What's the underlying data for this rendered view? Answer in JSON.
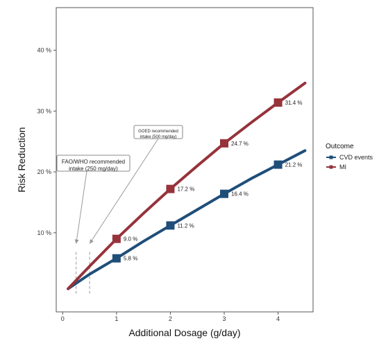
{
  "chart_data": {
    "type": "line",
    "title": "",
    "xlabel": "Additional Dosage (g/day)",
    "ylabel": "Risk Reduction",
    "xlim": [
      -0.12,
      4.65
    ],
    "ylim": [
      -0.03,
      0.47
    ],
    "x_ticks": [
      0,
      1,
      2,
      3,
      4
    ],
    "x_tick_labels": [
      "0",
      "1",
      "2",
      "3",
      "4"
    ],
    "y_ticks": [
      0.1,
      0.2,
      0.3,
      0.4
    ],
    "y_tick_labels": [
      "10 %",
      "20 %",
      "30 %",
      "40 %"
    ],
    "grid": false,
    "legend": {
      "title": "Outcome",
      "placement": "right",
      "entries": [
        "CVD events",
        "MI"
      ]
    },
    "series": [
      {
        "name": "CVD events",
        "color": "#1f4e79",
        "x": [
          0.1,
          0.5,
          1,
          1.5,
          2,
          2.5,
          3,
          3.5,
          4,
          4.5
        ],
        "y": [
          0.008,
          0.032,
          0.058,
          0.086,
          0.112,
          0.138,
          0.164,
          0.189,
          0.212,
          0.235
        ],
        "points": [
          {
            "x": 1,
            "y": 0.058,
            "label": "5.8 %"
          },
          {
            "x": 2,
            "y": 0.112,
            "label": "11.2 %"
          },
          {
            "x": 3,
            "y": 0.164,
            "label": "16.4 %"
          },
          {
            "x": 4,
            "y": 0.212,
            "label": "21.2 %"
          }
        ]
      },
      {
        "name": "MI",
        "color": "#96333b",
        "x": [
          0.1,
          0.5,
          1,
          1.5,
          2,
          2.5,
          3,
          3.5,
          4,
          4.5
        ],
        "y": [
          0.008,
          0.045,
          0.09,
          0.132,
          0.172,
          0.21,
          0.247,
          0.281,
          0.314,
          0.346
        ],
        "points": [
          {
            "x": 1,
            "y": 0.09,
            "label": "9.0 %"
          },
          {
            "x": 2,
            "y": 0.172,
            "label": "17.2 %"
          },
          {
            "x": 3,
            "y": 0.247,
            "label": "24.7 %"
          },
          {
            "x": 4,
            "y": 0.314,
            "label": "31.4 %"
          }
        ]
      }
    ],
    "annotations": [
      {
        "lines": [
          "FAO/WHO recommended",
          "intake (250 mg/day)"
        ],
        "x_ref": 0.25
      },
      {
        "lines": [
          "GOED recommended",
          "intake (500 mg/day)"
        ],
        "x_ref": 0.5
      }
    ],
    "colors": {
      "axis": "#555555",
      "annotation": "#999999"
    }
  }
}
